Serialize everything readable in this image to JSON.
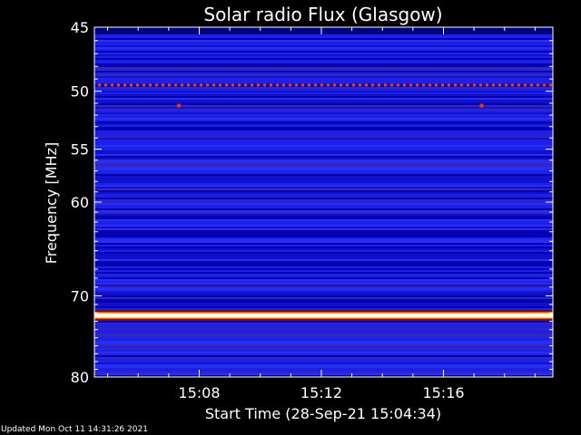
{
  "chart_data": {
    "type": "heatmap",
    "title": "Solar radio Flux (Glasgow)",
    "xlabel": "Start Time (28-Sep-21 15:04:34)",
    "ylabel": "Frequency [MHz]",
    "x_unit": "time",
    "xlim": [
      "15:04:34",
      "15:19:35"
    ],
    "x_ticks": [
      "15:08",
      "15:12",
      "15:16"
    ],
    "ylim": [
      45,
      80
    ],
    "y_scale": "log",
    "y_ticks": [
      45,
      50,
      55,
      60,
      70,
      80
    ],
    "y_inverted": true,
    "colormap": "black-blue-red-yellow-white",
    "background_level": "blue",
    "features": [
      {
        "kind": "continuous-band",
        "frequency_mhz": 72.3,
        "intensity": "saturated white"
      },
      {
        "kind": "dotted-line",
        "frequency_mhz": 49.5,
        "intensity": "red"
      },
      {
        "kind": "point",
        "time": "15:07:20",
        "frequency_mhz": 51.2,
        "intensity": "red"
      },
      {
        "kind": "point",
        "time": "15:17:15",
        "frequency_mhz": 51.2,
        "intensity": "red"
      }
    ]
  },
  "footer": {
    "updated": "Updated Mon Oct 11 14:31:26 2021"
  },
  "colors": {
    "background": "#000000",
    "axis": "#ffffff",
    "spectrum_base": "#1a1ae0"
  }
}
